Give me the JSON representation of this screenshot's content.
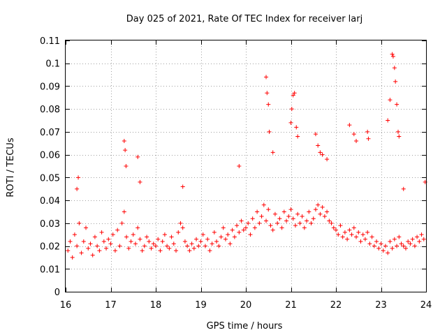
{
  "chart_data": {
    "type": "scatter",
    "title": "Day 025 of 2021, Rate Of TEC Index for receiver larj",
    "xlabel": "GPS time / hours",
    "ylabel": "ROTI / TECUs",
    "xlim": [
      16,
      24
    ],
    "ylim": [
      0,
      0.11
    ],
    "x_ticks": [
      16,
      17,
      18,
      19,
      20,
      21,
      22,
      23,
      24
    ],
    "x_tick_labels": [
      "16",
      "17",
      "18",
      "19",
      "20",
      "21",
      "22",
      "23",
      "24"
    ],
    "y_ticks": [
      0,
      0.01,
      0.02,
      0.03,
      0.04,
      0.05,
      0.06,
      0.07,
      0.08,
      0.09,
      0.1,
      0.11
    ],
    "y_tick_labels": [
      "0",
      "0.01",
      "0.02",
      "0.03",
      "0.04",
      "0.05",
      "0.06",
      "0.07",
      "0.08",
      "0.09",
      "0.1",
      "0.11"
    ],
    "grid": true,
    "marker": "+",
    "color": "#ff0000",
    "series": [
      {
        "name": "ROTI",
        "x": [
          16.05,
          16.1,
          16.15,
          16.2,
          16.25,
          16.3,
          16.35,
          16.4,
          16.45,
          16.5,
          16.55,
          16.6,
          16.65,
          16.7,
          16.75,
          16.8,
          16.85,
          16.9,
          16.95,
          17.0,
          17.05,
          17.1,
          17.15,
          17.2,
          17.25,
          17.3,
          17.35,
          17.4,
          17.45,
          17.5,
          17.55,
          17.6,
          17.65,
          17.7,
          17.75,
          17.8,
          17.85,
          17.9,
          17.95,
          18.0,
          18.05,
          18.1,
          18.15,
          18.2,
          18.25,
          18.3,
          18.35,
          18.4,
          18.45,
          18.5,
          18.55,
          18.6,
          18.65,
          18.7,
          18.75,
          18.8,
          18.85,
          18.9,
          18.95,
          19.0,
          19.05,
          19.1,
          19.15,
          19.2,
          19.25,
          19.3,
          19.35,
          19.4,
          19.45,
          19.5,
          19.55,
          19.6,
          19.65,
          19.7,
          19.75,
          19.8,
          19.85,
          19.9,
          19.95,
          20.0,
          20.05,
          20.1,
          20.15,
          20.2,
          20.25,
          20.3,
          20.35,
          20.4,
          20.45,
          20.5,
          20.55,
          20.6,
          20.65,
          20.7,
          20.75,
          20.8,
          20.85,
          20.9,
          20.95,
          21.0,
          21.05,
          21.1,
          21.15,
          21.2,
          21.25,
          21.3,
          21.35,
          21.4,
          21.45,
          21.5,
          21.55,
          21.6,
          21.65,
          21.7,
          21.75,
          21.8,
          21.85,
          21.9,
          21.95,
          22.0,
          22.05,
          22.1,
          22.15,
          22.2,
          22.25,
          22.3,
          22.35,
          22.4,
          22.45,
          22.5,
          22.55,
          22.6,
          22.65,
          22.7,
          22.75,
          22.8,
          22.85,
          22.9,
          22.95,
          23.0,
          23.05,
          23.1,
          23.15,
          23.2,
          23.25,
          23.3,
          23.35,
          23.4,
          23.45,
          23.5,
          23.55,
          23.6,
          23.65,
          23.7,
          23.75,
          23.8,
          23.85,
          23.9,
          23.95,
          16.25,
          16.28,
          17.3,
          17.32,
          17.34,
          17.6,
          17.65,
          18.6,
          19.85,
          20.45,
          20.47,
          20.5,
          20.52,
          20.6,
          21.0,
          21.02,
          21.05,
          21.08,
          21.12,
          21.15,
          21.55,
          21.6,
          21.65,
          21.7,
          21.8,
          22.3,
          22.4,
          22.45,
          22.7,
          22.72,
          23.15,
          23.2,
          23.25,
          23.27,
          23.3,
          23.32,
          23.35,
          23.38,
          23.4,
          23.5,
          23.98
        ],
        "y": [
          0.018,
          0.022,
          0.015,
          0.025,
          0.02,
          0.03,
          0.017,
          0.022,
          0.028,
          0.019,
          0.021,
          0.016,
          0.024,
          0.02,
          0.018,
          0.026,
          0.022,
          0.019,
          0.023,
          0.021,
          0.025,
          0.018,
          0.027,
          0.02,
          0.03,
          0.035,
          0.024,
          0.019,
          0.022,
          0.025,
          0.021,
          0.028,
          0.023,
          0.018,
          0.02,
          0.024,
          0.022,
          0.019,
          0.021,
          0.02,
          0.023,
          0.018,
          0.022,
          0.025,
          0.02,
          0.019,
          0.024,
          0.021,
          0.018,
          0.026,
          0.03,
          0.028,
          0.022,
          0.02,
          0.018,
          0.021,
          0.019,
          0.023,
          0.02,
          0.022,
          0.025,
          0.02,
          0.023,
          0.018,
          0.021,
          0.026,
          0.022,
          0.02,
          0.024,
          0.028,
          0.023,
          0.025,
          0.021,
          0.027,
          0.024,
          0.029,
          0.026,
          0.031,
          0.027,
          0.028,
          0.03,
          0.025,
          0.032,
          0.028,
          0.035,
          0.03,
          0.033,
          0.038,
          0.031,
          0.036,
          0.029,
          0.027,
          0.034,
          0.03,
          0.032,
          0.028,
          0.035,
          0.031,
          0.033,
          0.036,
          0.032,
          0.029,
          0.034,
          0.03,
          0.033,
          0.028,
          0.031,
          0.035,
          0.03,
          0.032,
          0.036,
          0.038,
          0.034,
          0.037,
          0.033,
          0.035,
          0.031,
          0.03,
          0.028,
          0.027,
          0.025,
          0.029,
          0.024,
          0.026,
          0.023,
          0.027,
          0.025,
          0.028,
          0.024,
          0.026,
          0.022,
          0.025,
          0.023,
          0.026,
          0.021,
          0.024,
          0.02,
          0.022,
          0.019,
          0.021,
          0.018,
          0.02,
          0.017,
          0.022,
          0.019,
          0.023,
          0.02,
          0.024,
          0.021,
          0.02,
          0.019,
          0.022,
          0.021,
          0.023,
          0.02,
          0.024,
          0.022,
          0.025,
          0.023,
          0.045,
          0.05,
          0.066,
          0.062,
          0.055,
          0.059,
          0.048,
          0.046,
          0.055,
          0.094,
          0.087,
          0.082,
          0.07,
          0.061,
          0.074,
          0.08,
          0.086,
          0.087,
          0.072,
          0.068,
          0.069,
          0.064,
          0.061,
          0.06,
          0.058,
          0.073,
          0.069,
          0.066,
          0.07,
          0.067,
          0.075,
          0.084,
          0.104,
          0.103,
          0.098,
          0.092,
          0.082,
          0.07,
          0.068,
          0.045,
          0.048
        ]
      }
    ]
  }
}
